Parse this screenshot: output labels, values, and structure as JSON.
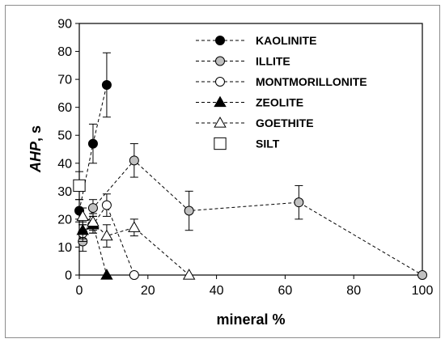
{
  "chart_data": {
    "type": "scatter",
    "xlabel": "mineral %",
    "ylabel_main": "AHP",
    "ylabel_suffix": ", s",
    "xlim": [
      0,
      100
    ],
    "ylim": [
      0,
      90
    ],
    "xticks": [
      0,
      20,
      40,
      60,
      80,
      100
    ],
    "yticks": [
      0,
      10,
      20,
      30,
      40,
      50,
      60,
      70,
      80,
      90
    ],
    "grid": false,
    "legend_position": "top-right",
    "series": [
      {
        "name": "KAOLINITE",
        "marker": "circle",
        "fill": "#000000",
        "stroke": "#000000",
        "dashed_line": true,
        "points": [
          {
            "x": 0,
            "y": 23,
            "err": 4
          },
          {
            "x": 4,
            "y": 47,
            "err": 7
          },
          {
            "x": 8,
            "y": 68,
            "err": 11.5
          }
        ]
      },
      {
        "name": "ILLITE",
        "marker": "circle",
        "fill": "#c0c0c0",
        "stroke": "#000000",
        "dashed_line": true,
        "points": [
          {
            "x": 1,
            "y": 12,
            "err": 3.5
          },
          {
            "x": 4,
            "y": 24,
            "err": 3
          },
          {
            "x": 16,
            "y": 41,
            "err": 6
          },
          {
            "x": 32,
            "y": 23,
            "err": 7
          },
          {
            "x": 64,
            "y": 26,
            "err": 6
          },
          {
            "x": 100,
            "y": 0,
            "err": 0
          }
        ]
      },
      {
        "name": "MONTMORILLONITE",
        "marker": "circle",
        "fill": "#ffffff",
        "stroke": "#000000",
        "dashed_line": true,
        "points": [
          {
            "x": 1,
            "y": 15,
            "err": 3
          },
          {
            "x": 4,
            "y": 18,
            "err": 3
          },
          {
            "x": 8,
            "y": 25,
            "err": 4
          },
          {
            "x": 16,
            "y": 0,
            "err": 0
          }
        ]
      },
      {
        "name": "ZEOLITE",
        "marker": "triangle",
        "fill": "#000000",
        "stroke": "#000000",
        "dashed_line": true,
        "points": [
          {
            "x": 1,
            "y": 16,
            "err": 3
          },
          {
            "x": 4,
            "y": 18,
            "err": 3
          },
          {
            "x": 8,
            "y": 0,
            "err": 0
          }
        ]
      },
      {
        "name": "GOETHITE",
        "marker": "triangle",
        "fill": "#ffffff",
        "stroke": "#000000",
        "dashed_line": true,
        "points": [
          {
            "x": 1,
            "y": 21,
            "err": 3
          },
          {
            "x": 4,
            "y": 19,
            "err": 3
          },
          {
            "x": 8,
            "y": 14,
            "err": 4
          },
          {
            "x": 16,
            "y": 17,
            "err": 3
          },
          {
            "x": 32,
            "y": 0,
            "err": 0
          }
        ]
      },
      {
        "name": "SILT",
        "marker": "square",
        "fill": "#ffffff",
        "stroke": "#000000",
        "dashed_line": false,
        "points": [
          {
            "x": 0,
            "y": 32,
            "err": 5
          }
        ]
      }
    ]
  }
}
